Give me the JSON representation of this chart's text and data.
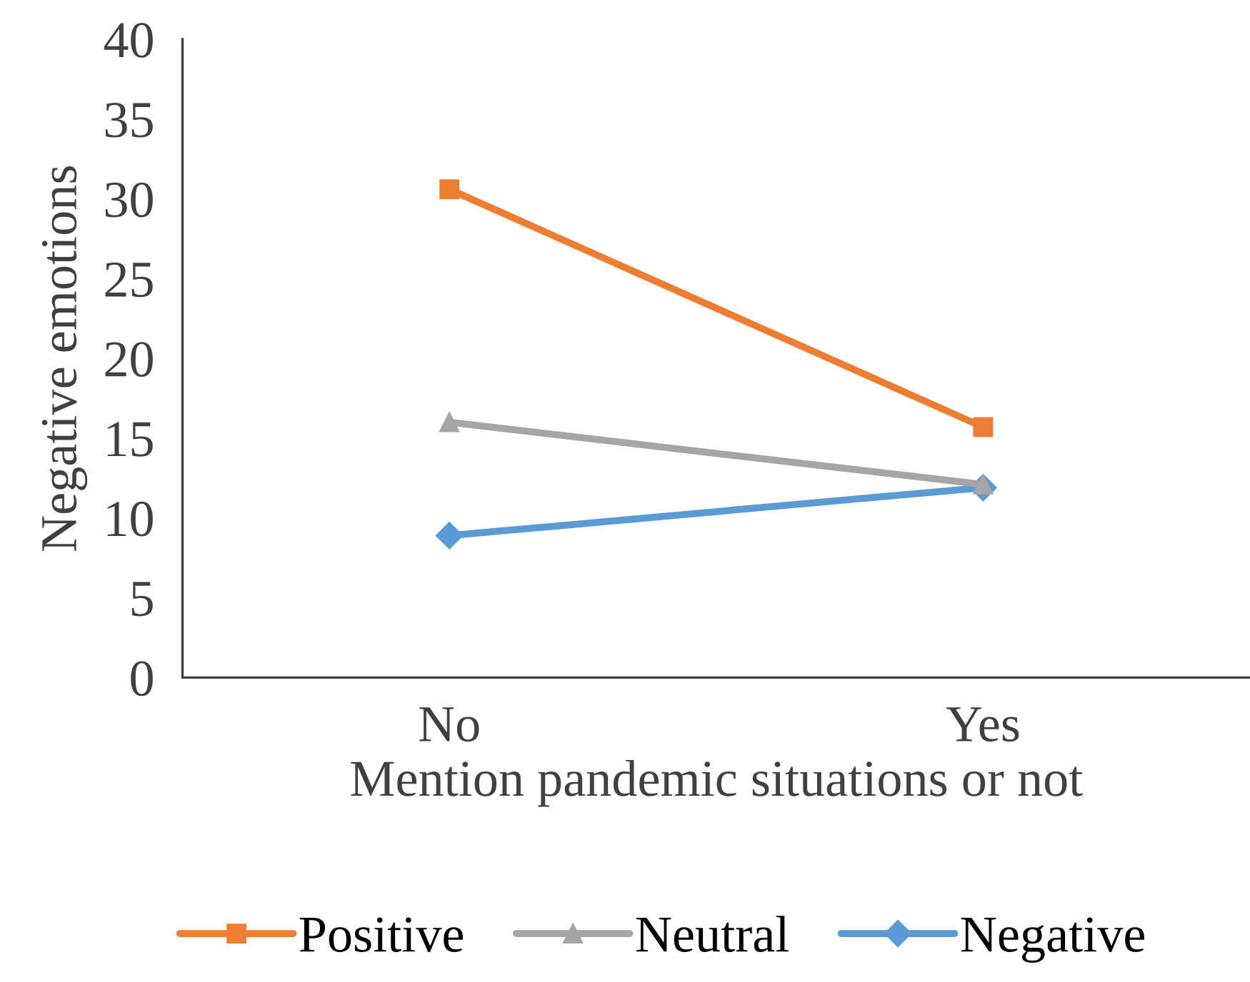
{
  "chart_data": {
    "type": "line",
    "xlabel": "Mention pandemic situations or not",
    "ylabel": "Negative emotions",
    "categories": [
      "No",
      "Yes"
    ],
    "series": [
      {
        "name": "Positive",
        "color": "#ed7d31",
        "marker": "square",
        "values": [
          30.6,
          15.7
        ]
      },
      {
        "name": "Neutral",
        "color": "#a5a5a5",
        "marker": "triangle",
        "values": [
          16.0,
          12.1
        ]
      },
      {
        "name": "Negative",
        "color": "#5b9bd5",
        "marker": "diamond",
        "values": [
          8.9,
          11.9
        ]
      }
    ],
    "ylim": [
      0,
      40
    ],
    "yticks": [
      0,
      5,
      10,
      15,
      20,
      25,
      30,
      35,
      40
    ],
    "grid": false,
    "legend": "bottom",
    "line_style": "solid"
  }
}
